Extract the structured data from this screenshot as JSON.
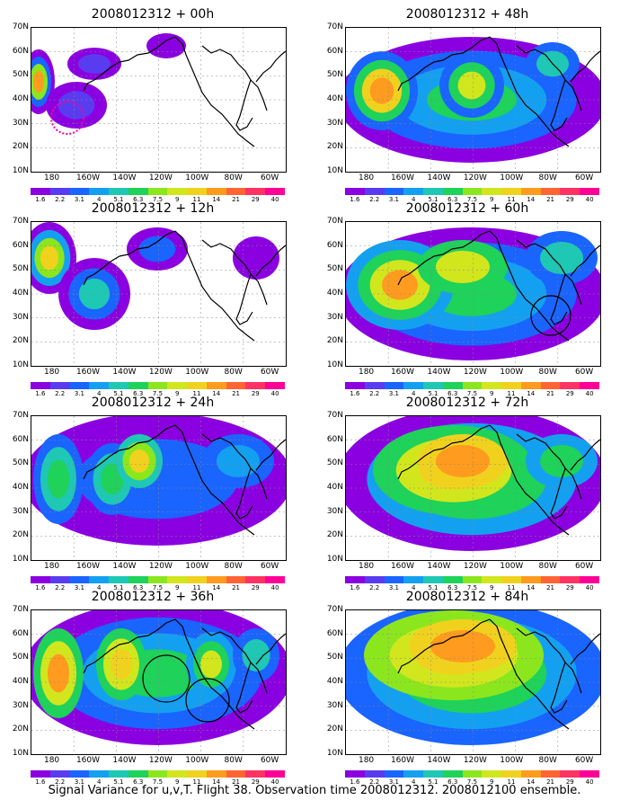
{
  "panels": [
    {
      "title": "2008012312 + 00h"
    },
    {
      "title": "2008012312 + 48h"
    },
    {
      "title": "2008012312 + 12h"
    },
    {
      "title": "2008012312 + 60h"
    },
    {
      "title": "2008012312 + 24h"
    },
    {
      "title": "2008012312 + 72h"
    },
    {
      "title": "2008012312 + 36h"
    },
    {
      "title": "2008012312 + 84h"
    }
  ],
  "lat_labels": [
    "70N",
    "60N",
    "50N",
    "40N",
    "30N",
    "20N",
    "10N"
  ],
  "lon_labels": [
    "180",
    "160W",
    "140W",
    "120W",
    "100W",
    "80W",
    "60W"
  ],
  "scale_labels": [
    "1.6",
    "2.2",
    "3.1",
    "4",
    "5.1",
    "6.3",
    "7.5",
    "9",
    "11",
    "14",
    "21",
    "29",
    "40"
  ],
  "scale_colors": [
    "#8b00e0",
    "#5a3cf0",
    "#1a64ff",
    "#14a0f0",
    "#1ec8b4",
    "#1ed25a",
    "#8ce61e",
    "#d2e61e",
    "#f0d21e",
    "#ff9b1e",
    "#ff6432",
    "#ff3264",
    "#ff0096"
  ],
  "caption": "Signal Variance for u,v,T. Flight 38. Observation time 2008012312. 2008012100 ensemble.",
  "colors": {
    "c0": "#8b00e0",
    "c1": "#5a3cf0",
    "c2": "#1a64ff",
    "c3": "#14a0f0",
    "c4": "#1ec8b4",
    "c5": "#1ed25a",
    "c6": "#8ce61e",
    "c7": "#d2e61e",
    "c8": "#f0d21e",
    "c9": "#ff9b1e",
    "c10": "#ff6432",
    "c11": "#ff3264",
    "c12": "#ff0096",
    "land": "#000000"
  }
}
